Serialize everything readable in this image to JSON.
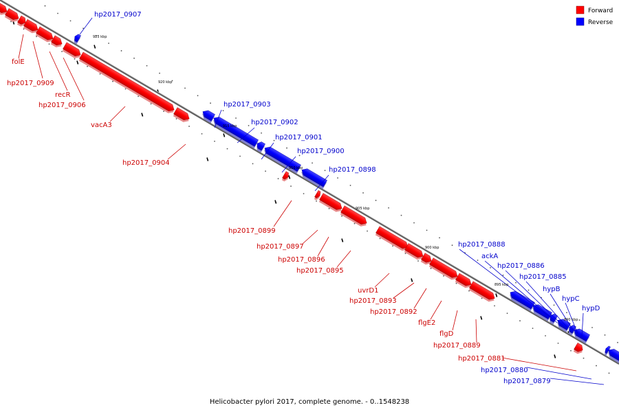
{
  "caption": "Helicobacter pylori 2017, complete genome. - 0..1548238",
  "legend": [
    {
      "label": "Forward",
      "color": "#ff0000"
    },
    {
      "label": "Reverse",
      "color": "#0000ff"
    }
  ],
  "colors": {
    "forward": "#ff0000",
    "reverse": "#0000ff",
    "axis": "#808080"
  },
  "ticks": [
    "925 kbp",
    "920 kbp",
    "915 kbp",
    "910 kbp",
    "905 kbp",
    "900 kbp",
    "895 kbp",
    "890 kbp"
  ],
  "labels": {
    "folE": "folE",
    "g0909": "hp2017_0909",
    "recR": "recR",
    "g0906": "hp2017_0906",
    "vacA3": "vacA3",
    "g0904": "hp2017_0904",
    "g0907": "hp2017_0907",
    "g0903": "hp2017_0903",
    "g0902": "hp2017_0902",
    "g0901": "hp2017_0901",
    "g0900": "hp2017_0900",
    "g0898": "hp2017_0898",
    "g0899": "hp2017_0899",
    "g0897": "hp2017_0897",
    "g0896": "hp2017_0896",
    "g0895": "hp2017_0895",
    "uvrD1": "uvrD1",
    "g0893": "hp2017_0893",
    "g0892": "hp2017_0892",
    "flgE2": "flgE2",
    "flgD": "flgD",
    "g0889": "hp2017_0889",
    "g0888": "hp2017_0888",
    "ackA": "ackA",
    "g0886": "hp2017_0886",
    "g0885": "hp2017_0885",
    "hypB": "hypB",
    "hypC": "hypC",
    "hypD": "hypD",
    "g0881": "hp2017_0881",
    "g0880": "hp2017_0880",
    "g0879": "hp2017_0879"
  }
}
